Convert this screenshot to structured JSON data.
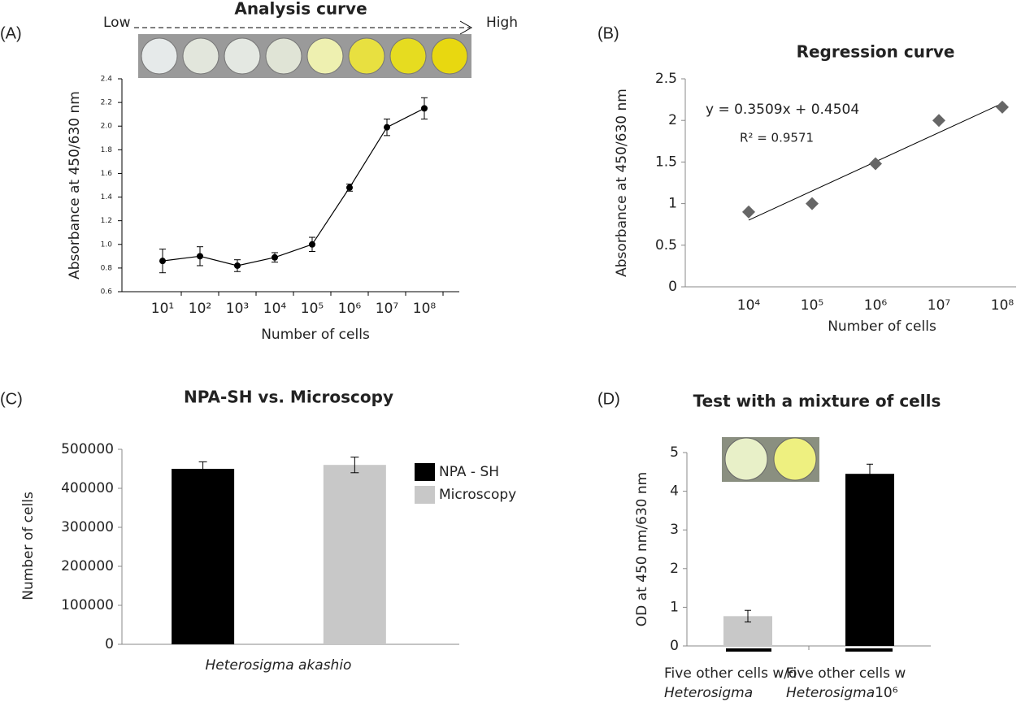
{
  "chart_data": [
    {
      "type": "line",
      "panel": "(A)",
      "title": "Analysis curve",
      "low_label": "Low",
      "high_label": "High",
      "x_label": "Number of cells",
      "y_label": "Absorbance at 450/630 nm",
      "categories": [
        "10¹",
        "10²",
        "10³",
        "10⁴",
        "10⁵",
        "10⁶",
        "10⁷",
        "10⁸"
      ],
      "values": [
        0.86,
        0.9,
        0.82,
        0.89,
        1.0,
        1.48,
        1.99,
        2.15
      ],
      "errors": [
        0.1,
        0.08,
        0.05,
        0.04,
        0.06,
        0.03,
        0.07,
        0.09
      ],
      "color": "#000000",
      "ylim": [
        0.6,
        2.4
      ],
      "yticks": [
        0.6,
        0.8,
        {
          "value": 1,
          "label": "1.0"
        },
        1.2,
        1.4,
        1.6,
        1.8,
        {
          "value": 2,
          "label": "2.0"
        },
        2.2,
        2.4
      ]
    },
    {
      "type": "scatter",
      "panel": "(B)",
      "title": "Regression curve",
      "x_label": "Number of cells",
      "y_label": "Absorbance at 450/630 nm",
      "categories": [
        "10⁴",
        "10⁵",
        "10⁶",
        "10⁷",
        "10⁸"
      ],
      "values": [
        0.9,
        1.0,
        1.48,
        2.0,
        2.16
      ],
      "color": "#666666",
      "trendline": {
        "label": "y = 0.3509x + 0.4504",
        "slope": 0.3509,
        "intercept": 0.4504,
        "r2_label": "R² = 0.9571"
      },
      "ylim": [
        0,
        2.5
      ],
      "yticks": [
        0,
        0.5,
        1,
        1.5,
        2,
        2.5
      ]
    },
    {
      "type": "bar",
      "panel": "(C)",
      "title": "NPA-SH vs. Microscopy",
      "y_label": "Number of cells",
      "categories": [
        "Heterosigma akashio"
      ],
      "series": [
        {
          "name": "NPA - SH",
          "color": "#000000",
          "values": [
            450000
          ],
          "errors": [
            18000
          ]
        },
        {
          "name": "Microscopy",
          "color": "#c8c8c8",
          "values": [
            460000
          ],
          "errors": [
            20000
          ]
        }
      ],
      "ylim": [
        0,
        500000
      ],
      "yticks": [
        0,
        100000,
        200000,
        300000,
        400000,
        500000
      ],
      "legend": "right"
    },
    {
      "type": "bar",
      "panel": "(D)",
      "title": "Test with a mixture of cells",
      "y_label": "OD at 450 nm/630 nm",
      "categories": [
        [
          "Five other cells w/o",
          "Heterosigma"
        ],
        [
          "Five other cells w",
          "Heterosigma",
          "10⁶"
        ]
      ],
      "values": [
        0.77,
        4.45
      ],
      "errors": [
        0.15,
        0.25
      ],
      "colors": [
        "#c8c8c8",
        "#000000"
      ],
      "ylim": [
        0,
        5
      ],
      "yticks": [
        0,
        1,
        2,
        3,
        4,
        5
      ]
    }
  ]
}
